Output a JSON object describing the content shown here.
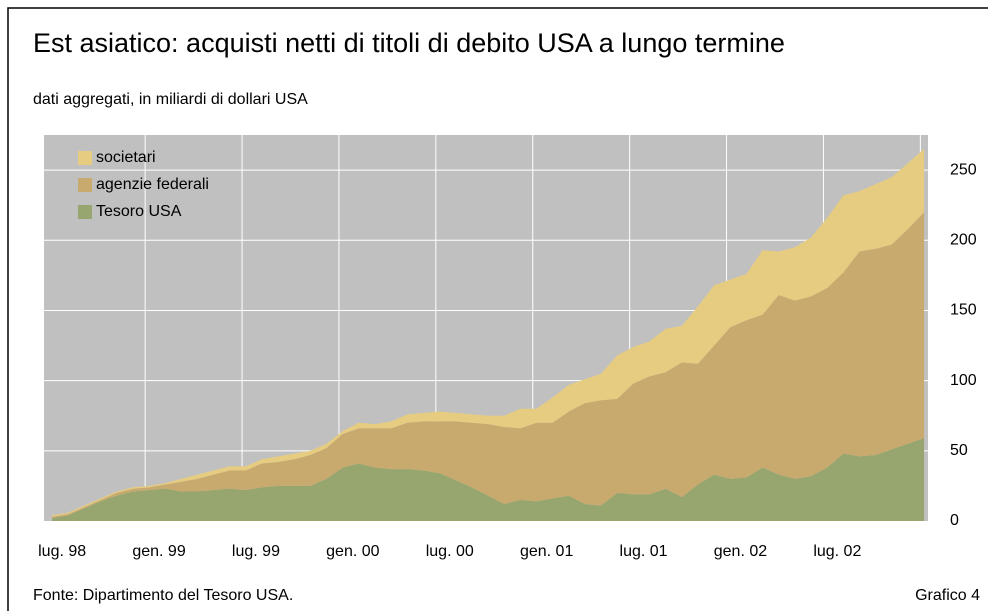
{
  "chart_data": {
    "type": "stacked_area",
    "title": "Est asiatico: acquisti netti di titoli di debito USA a lungo termine",
    "subtitle": "dati aggregati, in miliardi di dollari USA",
    "source": "Fonte: Dipartimento del Tesoro USA.",
    "figure_label": "Grafico 4",
    "categories": [
      null,
      "lug. 98",
      null,
      null,
      null,
      null,
      null,
      "gen. 99",
      null,
      null,
      null,
      null,
      null,
      "lug. 99",
      null,
      null,
      null,
      null,
      null,
      "gen. 00",
      null,
      null,
      null,
      null,
      null,
      "lug. 00",
      null,
      null,
      null,
      null,
      null,
      "gen. 01",
      null,
      null,
      null,
      null,
      null,
      "lug. 01",
      null,
      null,
      null,
      null,
      null,
      "gen. 02",
      null,
      null,
      null,
      null,
      null,
      "lug. 02",
      null,
      null,
      null,
      null,
      null
    ],
    "series": [
      {
        "name": "Tesoro USA",
        "color": "#96a66e",
        "values": [
          2,
          4,
          9,
          14,
          18,
          21,
          22,
          23,
          21,
          21,
          22,
          23,
          22,
          24,
          25,
          25,
          25,
          30,
          38,
          41,
          38,
          37,
          37,
          36,
          34,
          29,
          24,
          18,
          12,
          15,
          14,
          16,
          18,
          12,
          11,
          20,
          19,
          19,
          23,
          17,
          26,
          33,
          30,
          31,
          38,
          33,
          30,
          32,
          38,
          48,
          46,
          47,
          51,
          55,
          59
        ]
      },
      {
        "name": "agenzie federali",
        "color": "#c8aa6e",
        "values": [
          1,
          1,
          1,
          1,
          2,
          2,
          2,
          3,
          7,
          9,
          11,
          13,
          14,
          17,
          17,
          19,
          22,
          22,
          24,
          25,
          28,
          29,
          33,
          35,
          37,
          42,
          46,
          51,
          55,
          51,
          56,
          54,
          60,
          72,
          75,
          67,
          79,
          84,
          83,
          96,
          86,
          92,
          108,
          112,
          109,
          128,
          127,
          128,
          128,
          129,
          146,
          147,
          146,
          153,
          161
        ]
      },
      {
        "name": "societari",
        "color": "#e6cc80",
        "values": [
          1,
          1,
          1,
          1,
          1,
          1,
          1,
          1,
          2,
          3,
          3,
          3,
          3,
          3,
          4,
          4,
          3,
          3,
          2,
          4,
          3,
          5,
          6,
          6,
          7,
          6,
          6,
          6,
          8,
          14,
          10,
          18,
          19,
          17,
          19,
          31,
          26,
          25,
          31,
          26,
          41,
          43,
          34,
          33,
          46,
          31,
          38,
          42,
          50,
          55,
          43,
          46,
          48,
          47,
          45
        ]
      }
    ],
    "ylim": [
      0,
      275
    ],
    "yticks": [
      0,
      50,
      100,
      150,
      200,
      250
    ],
    "grid": true,
    "legend": "top-left"
  }
}
